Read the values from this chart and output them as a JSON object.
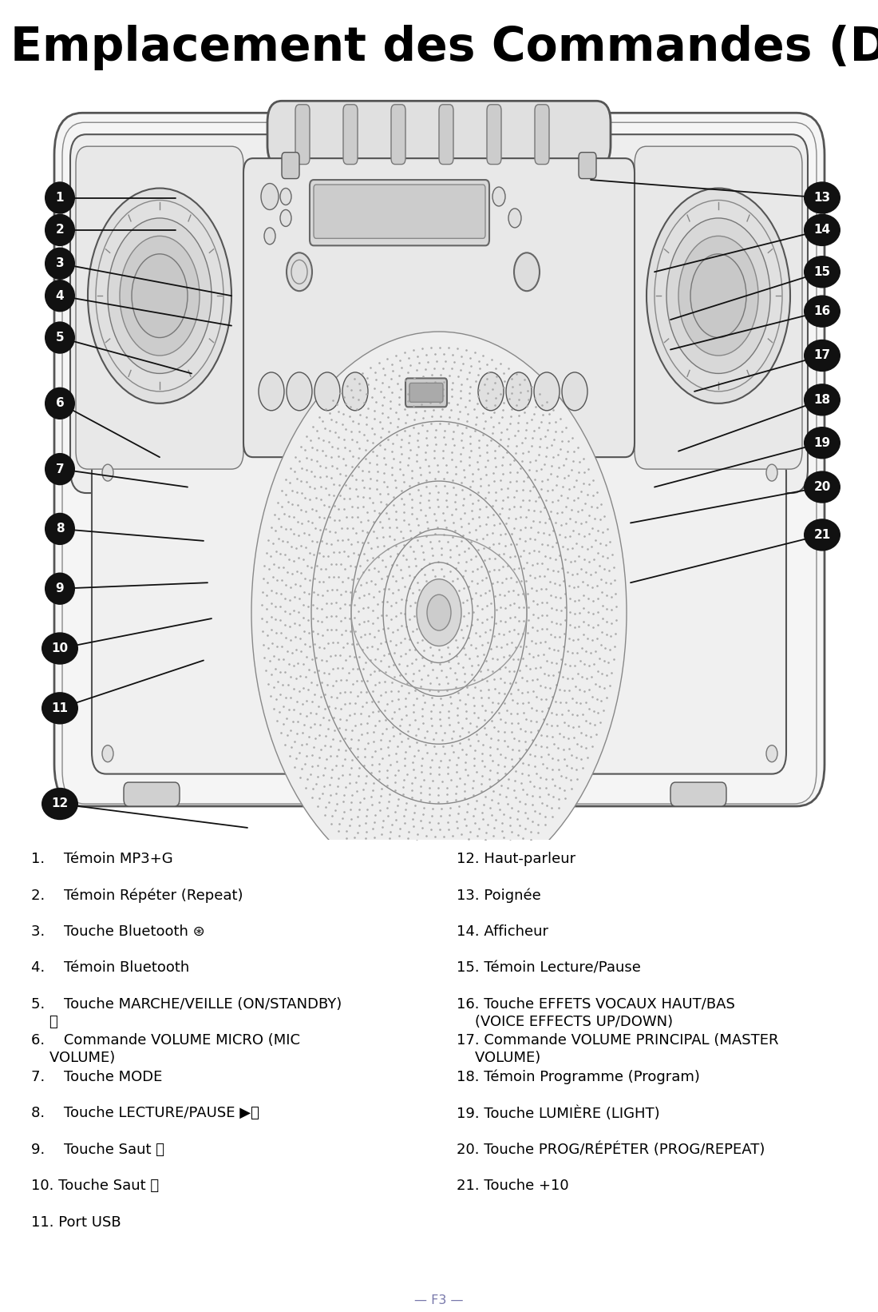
{
  "title": "Emplacement des Commandes (Dessus/Devant)",
  "title_fontsize": 42,
  "bg_color": "#ffffff",
  "text_color": "#000000",
  "footer": "— F3 —",
  "footer_color": "#7777aa",
  "diagram_line_color": "#555555",
  "callout_bg": "#111111",
  "callout_fg": "#ffffff",
  "items_left": [
    "1.  Témoin MP3+G",
    "2.  Témoin Répéter (Repeat)",
    "3.  Touche Bluetooth ⊛",
    "4.  Témoin Bluetooth",
    "5.  Touche MARCHE/VEILLE (ON/STANDBY)\n    ⏻",
    "6.  Commande VOLUME MICRO (MIC\n    VOLUME)",
    "7.  Touche MODE",
    "8.  Touche LECTURE/PAUSE ▶⏸",
    "9.  Touche Saut ⏮",
    "10. Touche Saut ⏭",
    "11. Port USB"
  ],
  "items_right": [
    "12. Haut-parleur",
    "13. Poignée",
    "14. Afficheur",
    "15. Témoin Lecture/Pause",
    "16. Touche EFFETS VOCAUX HAUT/BAS\n    (VOICE EFFECTS UP/DOWN)",
    "17. Commande VOLUME PRINCIPAL (MASTER\n    VOLUME)",
    "18. Témoin Programme (Program)",
    "19. Touche LUMIÈRE (LIGHT)",
    "20. Touche PROG/RÉPÉTER (PROG/REPEAT)",
    "21. Touche +10"
  ],
  "left_callouts": [
    [
      1,
      75,
      93,
      220,
      93
    ],
    [
      2,
      75,
      120,
      220,
      120
    ],
    [
      3,
      75,
      148,
      290,
      175
    ],
    [
      4,
      75,
      175,
      290,
      200
    ],
    [
      5,
      75,
      210,
      240,
      240
    ],
    [
      6,
      75,
      265,
      200,
      310
    ],
    [
      7,
      75,
      320,
      235,
      335
    ],
    [
      8,
      75,
      370,
      255,
      380
    ],
    [
      9,
      75,
      420,
      260,
      415
    ],
    [
      10,
      75,
      470,
      265,
      445
    ],
    [
      11,
      75,
      520,
      255,
      480
    ],
    [
      12,
      75,
      600,
      310,
      620
    ]
  ],
  "right_callouts": [
    [
      13,
      1030,
      93,
      740,
      78
    ],
    [
      14,
      1030,
      120,
      820,
      155
    ],
    [
      15,
      1030,
      155,
      840,
      195
    ],
    [
      16,
      1030,
      188,
      840,
      220
    ],
    [
      17,
      1030,
      225,
      870,
      255
    ],
    [
      18,
      1030,
      262,
      850,
      305
    ],
    [
      19,
      1030,
      298,
      820,
      335
    ],
    [
      20,
      1030,
      335,
      790,
      365
    ],
    [
      21,
      1030,
      375,
      790,
      415
    ]
  ]
}
